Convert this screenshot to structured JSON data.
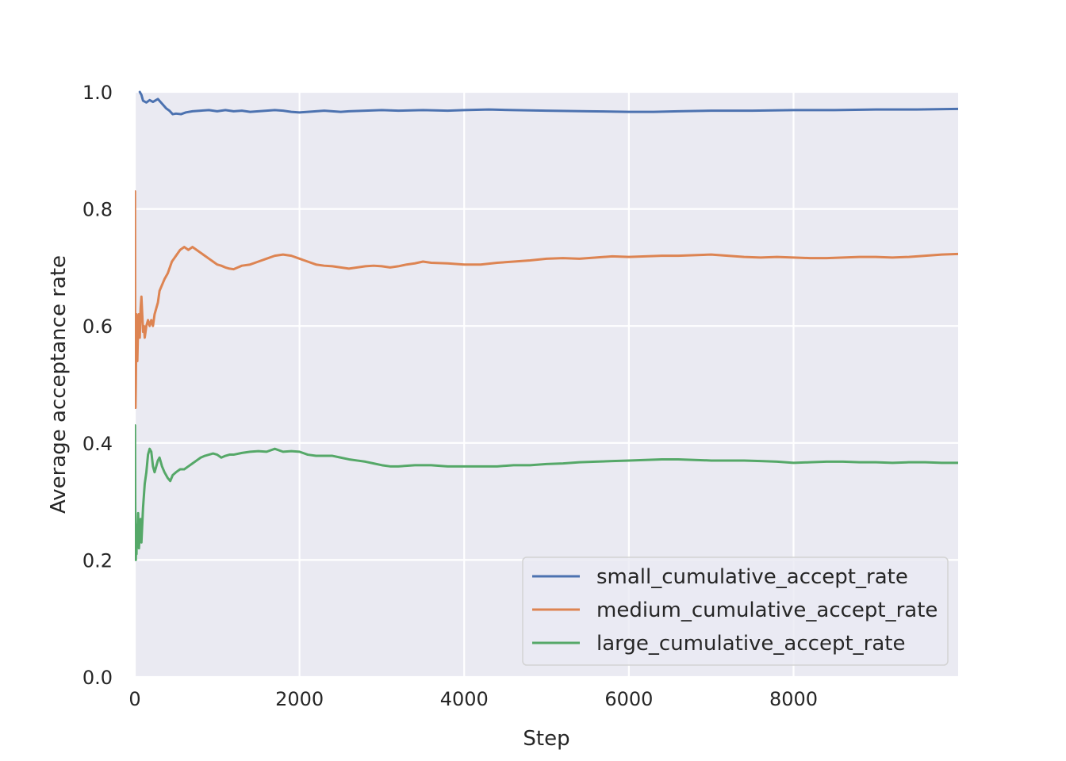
{
  "chart_data": {
    "type": "line",
    "title": "",
    "xlabel": "Step",
    "ylabel": "Average acceptance rate",
    "xlim": [
      0,
      9999
    ],
    "ylim": [
      0,
      1.0
    ],
    "x_ticks": [
      0,
      2000,
      4000,
      6000,
      8000
    ],
    "x_tick_labels": [
      "0",
      "2000",
      "4000",
      "6000",
      "8000"
    ],
    "y_ticks": [
      0.0,
      0.2,
      0.4,
      0.6,
      0.8,
      1.0
    ],
    "y_tick_labels": [
      "0.0",
      "0.2",
      "0.4",
      "0.6",
      "0.8",
      "1.0"
    ],
    "grid": true,
    "legend_position": "bottom-right",
    "colors": {
      "background": "#eaeaf2",
      "grid": "#ffffff",
      "text": "#262626"
    },
    "series": [
      {
        "name": "small_cumulative_accept_rate",
        "color": "#4c72b0",
        "x": [
          60,
          80,
          100,
          140,
          180,
          220,
          280,
          330,
          380,
          420,
          460,
          500,
          560,
          620,
          700,
          800,
          900,
          1000,
          1100,
          1200,
          1300,
          1400,
          1500,
          1600,
          1700,
          1800,
          1900,
          2000,
          2100,
          2200,
          2300,
          2400,
          2500,
          2600,
          2800,
          3000,
          3200,
          3500,
          3800,
          4000,
          4300,
          4600,
          5000,
          5500,
          6000,
          6300,
          6600,
          7000,
          7500,
          8000,
          8500,
          9000,
          9500,
          9999
        ],
        "y": [
          1.0,
          0.995,
          0.985,
          0.982,
          0.986,
          0.983,
          0.988,
          0.98,
          0.972,
          0.968,
          0.962,
          0.963,
          0.962,
          0.965,
          0.967,
          0.968,
          0.969,
          0.967,
          0.969,
          0.967,
          0.968,
          0.966,
          0.967,
          0.968,
          0.969,
          0.968,
          0.966,
          0.965,
          0.966,
          0.967,
          0.968,
          0.967,
          0.966,
          0.967,
          0.968,
          0.969,
          0.968,
          0.969,
          0.968,
          0.969,
          0.97,
          0.969,
          0.968,
          0.967,
          0.966,
          0.966,
          0.967,
          0.968,
          0.968,
          0.969,
          0.969,
          0.97,
          0.97,
          0.971
        ]
      },
      {
        "name": "medium_cumulative_accept_rate",
        "color": "#dd8452",
        "x": [
          2,
          5,
          8,
          12,
          16,
          20,
          25,
          30,
          40,
          50,
          60,
          70,
          80,
          90,
          100,
          110,
          120,
          140,
          160,
          180,
          200,
          220,
          240,
          260,
          280,
          300,
          330,
          360,
          400,
          450,
          500,
          550,
          600,
          650,
          700,
          750,
          800,
          850,
          900,
          950,
          1000,
          1050,
          1100,
          1150,
          1200,
          1250,
          1300,
          1400,
          1500,
          1600,
          1700,
          1800,
          1900,
          2000,
          2100,
          2200,
          2300,
          2400,
          2500,
          2600,
          2700,
          2800,
          2900,
          3000,
          3100,
          3200,
          3300,
          3400,
          3500,
          3600,
          3800,
          4000,
          4200,
          4400,
          4600,
          4800,
          5000,
          5200,
          5400,
          5600,
          5800,
          6000,
          6200,
          6400,
          6600,
          6800,
          7000,
          7200,
          7400,
          7600,
          7800,
          8000,
          8200,
          8400,
          8600,
          8800,
          9000,
          9200,
          9400,
          9600,
          9800,
          9999
        ],
        "y": [
          0.83,
          0.5,
          0.46,
          0.5,
          0.56,
          0.62,
          0.58,
          0.54,
          0.6,
          0.62,
          0.58,
          0.63,
          0.65,
          0.62,
          0.59,
          0.6,
          0.58,
          0.6,
          0.61,
          0.6,
          0.61,
          0.6,
          0.62,
          0.63,
          0.64,
          0.66,
          0.67,
          0.68,
          0.69,
          0.71,
          0.72,
          0.73,
          0.735,
          0.73,
          0.735,
          0.73,
          0.725,
          0.72,
          0.715,
          0.71,
          0.705,
          0.703,
          0.7,
          0.698,
          0.697,
          0.7,
          0.703,
          0.705,
          0.71,
          0.715,
          0.72,
          0.722,
          0.72,
          0.715,
          0.71,
          0.705,
          0.703,
          0.702,
          0.7,
          0.698,
          0.7,
          0.702,
          0.703,
          0.702,
          0.7,
          0.702,
          0.705,
          0.707,
          0.71,
          0.708,
          0.707,
          0.705,
          0.705,
          0.708,
          0.71,
          0.712,
          0.715,
          0.716,
          0.715,
          0.717,
          0.719,
          0.718,
          0.719,
          0.72,
          0.72,
          0.721,
          0.722,
          0.72,
          0.718,
          0.717,
          0.718,
          0.717,
          0.716,
          0.716,
          0.717,
          0.718,
          0.718,
          0.717,
          0.718,
          0.72,
          0.722,
          0.723
        ]
      },
      {
        "name": "large_cumulative_accept_rate",
        "color": "#55a868",
        "x": [
          2,
          5,
          8,
          12,
          16,
          20,
          25,
          30,
          40,
          50,
          60,
          70,
          80,
          90,
          100,
          120,
          140,
          160,
          180,
          200,
          220,
          240,
          260,
          280,
          300,
          330,
          360,
          400,
          430,
          460,
          500,
          550,
          600,
          650,
          700,
          750,
          800,
          850,
          900,
          950,
          1000,
          1050,
          1100,
          1150,
          1200,
          1300,
          1400,
          1500,
          1600,
          1700,
          1800,
          1900,
          2000,
          2100,
          2200,
          2300,
          2400,
          2500,
          2600,
          2700,
          2800,
          2900,
          3000,
          3100,
          3200,
          3400,
          3600,
          3800,
          4000,
          4200,
          4400,
          4600,
          4800,
          5000,
          5200,
          5400,
          5600,
          5800,
          6000,
          6200,
          6400,
          6600,
          6800,
          7000,
          7200,
          7400,
          7600,
          7800,
          8000,
          8200,
          8400,
          8600,
          8800,
          9000,
          9200,
          9400,
          9600,
          9800,
          9999
        ],
        "y": [
          0.43,
          0.3,
          0.22,
          0.2,
          0.24,
          0.21,
          0.26,
          0.23,
          0.28,
          0.22,
          0.25,
          0.27,
          0.23,
          0.26,
          0.29,
          0.33,
          0.35,
          0.38,
          0.39,
          0.385,
          0.36,
          0.35,
          0.36,
          0.37,
          0.375,
          0.36,
          0.35,
          0.34,
          0.335,
          0.345,
          0.35,
          0.355,
          0.355,
          0.36,
          0.365,
          0.37,
          0.375,
          0.378,
          0.38,
          0.382,
          0.38,
          0.375,
          0.378,
          0.38,
          0.38,
          0.383,
          0.385,
          0.386,
          0.385,
          0.39,
          0.385,
          0.386,
          0.385,
          0.38,
          0.378,
          0.378,
          0.378,
          0.375,
          0.372,
          0.37,
          0.368,
          0.365,
          0.362,
          0.36,
          0.36,
          0.362,
          0.362,
          0.36,
          0.36,
          0.36,
          0.36,
          0.362,
          0.362,
          0.364,
          0.365,
          0.367,
          0.368,
          0.369,
          0.37,
          0.371,
          0.372,
          0.372,
          0.371,
          0.37,
          0.37,
          0.37,
          0.369,
          0.368,
          0.366,
          0.367,
          0.368,
          0.368,
          0.367,
          0.367,
          0.366,
          0.367,
          0.367,
          0.366,
          0.366
        ]
      }
    ]
  }
}
